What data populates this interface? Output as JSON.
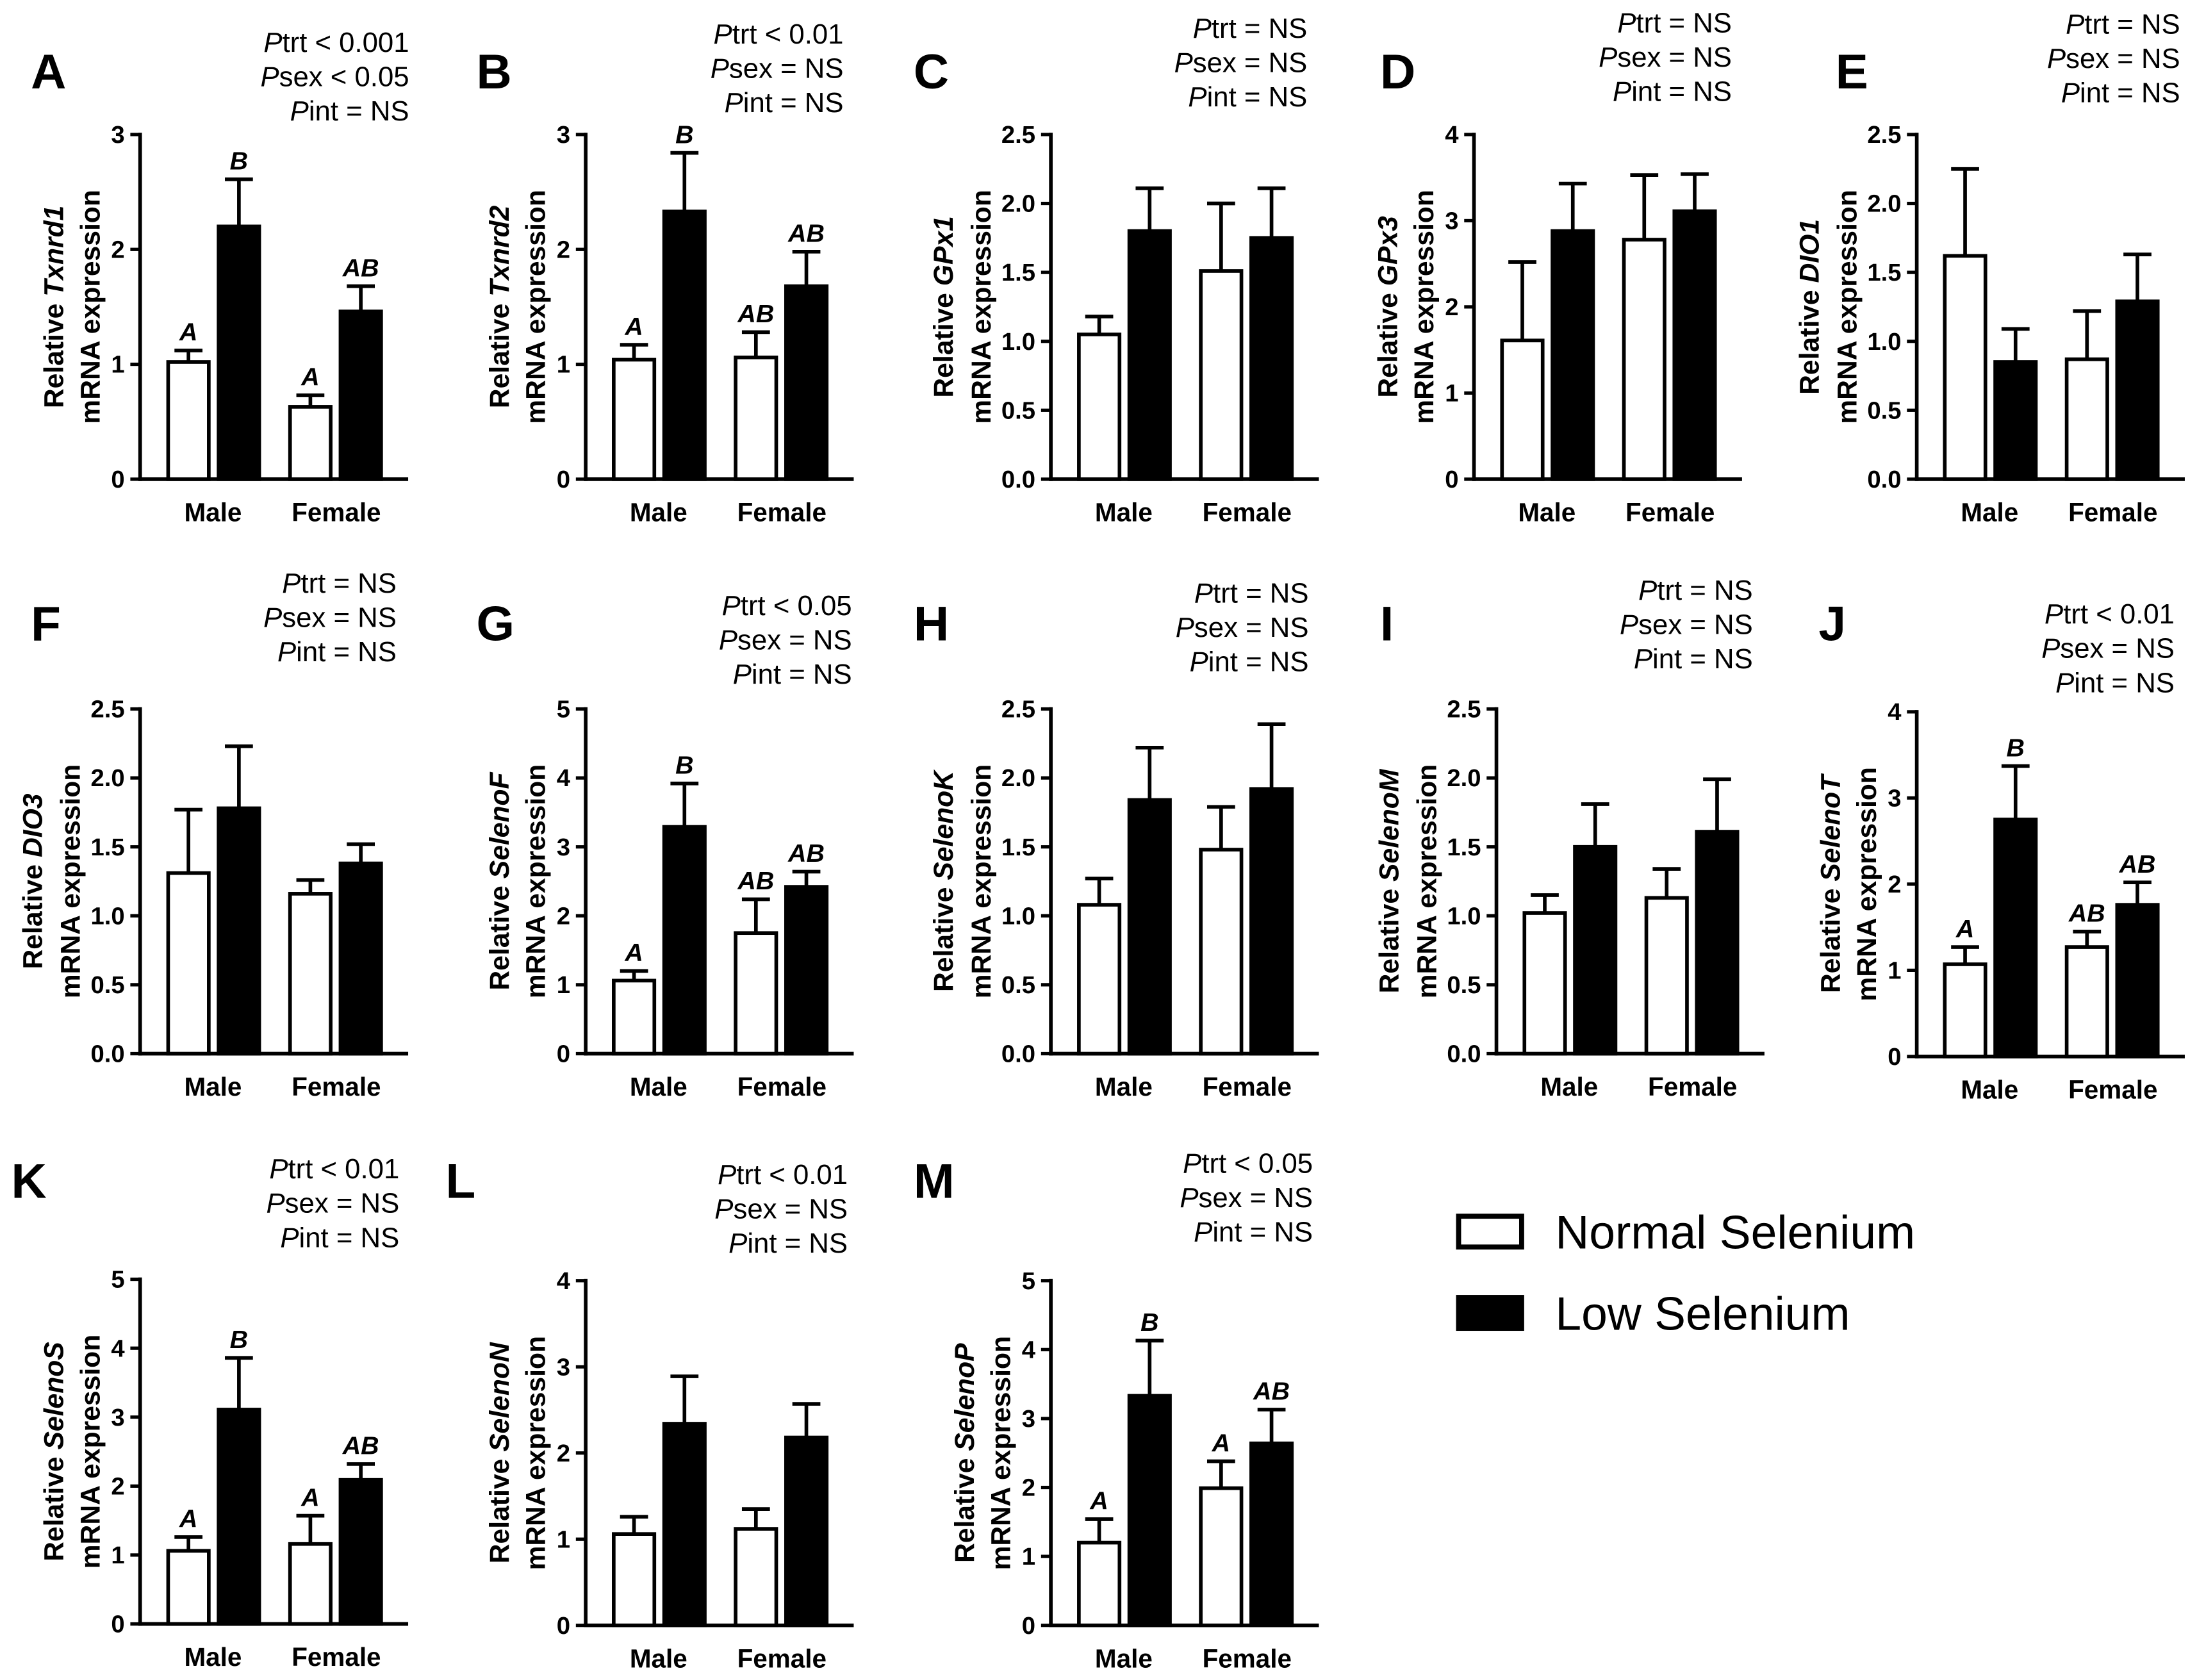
{
  "legend": {
    "items": [
      {
        "label": "Normal Selenium",
        "fill": "#ffffff"
      },
      {
        "label": "Low Selenium",
        "fill": "#000000"
      }
    ]
  },
  "chart_data": [
    {
      "type": "bar",
      "panel": "A",
      "ylabel": {
        "prefix": "Relative",
        "gene": "Txnrd1",
        "line2": "mRNA expression"
      },
      "ylim": [
        0,
        3
      ],
      "yticks": [
        "0",
        "1",
        "2",
        "3"
      ],
      "categories": [
        "Male",
        "Female"
      ],
      "series": [
        {
          "fill": "#ffffff",
          "values": [
            1.02,
            0.63
          ],
          "errors": [
            0.1,
            0.1
          ],
          "letters": [
            "A",
            "A"
          ]
        },
        {
          "fill": "#000000",
          "values": [
            2.2,
            1.46
          ],
          "errors": [
            0.41,
            0.22
          ],
          "letters": [
            "B",
            "AB"
          ]
        }
      ],
      "stats": [
        {
          "p": "P",
          "text": "trt < 0.001"
        },
        {
          "p": "P",
          "text": "sex < 0.05"
        },
        {
          "p": "P",
          "text": "int = NS"
        }
      ]
    },
    {
      "type": "bar",
      "panel": "B",
      "ylabel": {
        "prefix": "Relative",
        "gene": "Txnrd2",
        "line2": "mRNA expression"
      },
      "ylim": [
        0,
        3
      ],
      "yticks": [
        "0",
        "1",
        "2",
        "3"
      ],
      "categories": [
        "Male",
        "Female"
      ],
      "series": [
        {
          "fill": "#ffffff",
          "values": [
            1.04,
            1.06
          ],
          "errors": [
            0.13,
            0.22
          ],
          "letters": [
            "A",
            "AB"
          ]
        },
        {
          "fill": "#000000",
          "values": [
            2.33,
            1.68
          ],
          "errors": [
            0.51,
            0.3
          ],
          "letters": [
            "B",
            "AB"
          ]
        }
      ],
      "stats": [
        {
          "p": "P",
          "text": "trt < 0.01"
        },
        {
          "p": "P",
          "text": "sex = NS"
        },
        {
          "p": "P",
          "text": "int = NS"
        }
      ]
    },
    {
      "type": "bar",
      "panel": "C",
      "ylabel": {
        "prefix": "Relative",
        "gene": "GPx1",
        "line2": "mRNA expression"
      },
      "ylim": [
        0,
        2.5
      ],
      "yticks": [
        "0.0",
        "0.5",
        "1.0",
        "1.5",
        "2.0",
        "2.5"
      ],
      "categories": [
        "Male",
        "Female"
      ],
      "series": [
        {
          "fill": "#ffffff",
          "values": [
            1.05,
            1.51
          ],
          "errors": [
            0.13,
            0.49
          ]
        },
        {
          "fill": "#000000",
          "values": [
            1.8,
            1.75
          ],
          "errors": [
            0.31,
            0.36
          ]
        }
      ],
      "stats": [
        {
          "p": "P",
          "text": "trt = NS"
        },
        {
          "p": "P",
          "text": "sex = NS"
        },
        {
          "p": "P",
          "text": "int = NS"
        }
      ]
    },
    {
      "type": "bar",
      "panel": "D",
      "ylabel": {
        "prefix": "Relative",
        "gene": "GPx3",
        "line2": "mRNA expression"
      },
      "ylim": [
        0,
        4
      ],
      "yticks": [
        "0",
        "1",
        "2",
        "3",
        "4"
      ],
      "categories": [
        "Male",
        "Female"
      ],
      "series": [
        {
          "fill": "#ffffff",
          "values": [
            1.61,
            2.78
          ],
          "errors": [
            0.91,
            0.75
          ]
        },
        {
          "fill": "#000000",
          "values": [
            2.88,
            3.11
          ],
          "errors": [
            0.55,
            0.43
          ]
        }
      ],
      "stats": [
        {
          "p": "P",
          "text": "trt = NS"
        },
        {
          "p": "P",
          "text": "sex = NS"
        },
        {
          "p": "P",
          "text": "int = NS"
        }
      ]
    },
    {
      "type": "bar",
      "panel": "E",
      "ylabel": {
        "prefix": "Relative",
        "gene": "DIO1",
        "line2": "mRNA expression"
      },
      "ylim": [
        0,
        2.5
      ],
      "yticks": [
        "0.0",
        "0.5",
        "1.0",
        "1.5",
        "2.0",
        "2.5"
      ],
      "categories": [
        "Male",
        "Female"
      ],
      "series": [
        {
          "fill": "#ffffff",
          "values": [
            1.62,
            0.87
          ],
          "errors": [
            0.63,
            0.35
          ]
        },
        {
          "fill": "#000000",
          "values": [
            0.85,
            1.29
          ],
          "errors": [
            0.24,
            0.34
          ]
        }
      ],
      "stats": [
        {
          "p": "P",
          "text": "trt = NS"
        },
        {
          "p": "P",
          "text": "sex = NS"
        },
        {
          "p": "P",
          "text": "int = NS"
        }
      ]
    },
    {
      "type": "bar",
      "panel": "F",
      "ylabel": {
        "prefix": "Relative",
        "gene": "DIO3",
        "line2": "mRNA expression"
      },
      "ylim": [
        0,
        2.5
      ],
      "yticks": [
        "0.0",
        "0.5",
        "1.0",
        "1.5",
        "2.0",
        "2.5"
      ],
      "categories": [
        "Male",
        "Female"
      ],
      "series": [
        {
          "fill": "#ffffff",
          "values": [
            1.31,
            1.16
          ],
          "errors": [
            0.46,
            0.1
          ]
        },
        {
          "fill": "#000000",
          "values": [
            1.78,
            1.38
          ],
          "errors": [
            0.45,
            0.14
          ]
        }
      ],
      "stats": [
        {
          "p": "P",
          "text": "trt = NS"
        },
        {
          "p": "P",
          "text": "sex = NS"
        },
        {
          "p": "P",
          "text": "int = NS"
        }
      ]
    },
    {
      "type": "bar",
      "panel": "G",
      "ylabel": {
        "prefix": "Relative",
        "gene": "SelenoF",
        "line2": "mRNA expression"
      },
      "ylim": [
        0,
        5
      ],
      "yticks": [
        "0",
        "1",
        "2",
        "3",
        "4",
        "5"
      ],
      "categories": [
        "Male",
        "Female"
      ],
      "series": [
        {
          "fill": "#ffffff",
          "values": [
            1.06,
            1.75
          ],
          "errors": [
            0.14,
            0.49
          ],
          "letters": [
            "A",
            "AB"
          ]
        },
        {
          "fill": "#000000",
          "values": [
            3.29,
            2.42
          ],
          "errors": [
            0.63,
            0.22
          ],
          "letters": [
            "B",
            "AB"
          ]
        }
      ],
      "stats": [
        {
          "p": "P",
          "text": "trt < 0.05"
        },
        {
          "p": "P",
          "text": "sex = NS"
        },
        {
          "p": "P",
          "text": "int = NS"
        }
      ]
    },
    {
      "type": "bar",
      "panel": "H",
      "ylabel": {
        "prefix": "Relative",
        "gene": "SelenoK",
        "line2": "mRNA expression"
      },
      "ylim": [
        0,
        2.5
      ],
      "yticks": [
        "0.0",
        "0.5",
        "1.0",
        "1.5",
        "2.0",
        "2.5"
      ],
      "categories": [
        "Male",
        "Female"
      ],
      "series": [
        {
          "fill": "#ffffff",
          "values": [
            1.08,
            1.48
          ],
          "errors": [
            0.19,
            0.31
          ]
        },
        {
          "fill": "#000000",
          "values": [
            1.84,
            1.92
          ],
          "errors": [
            0.38,
            0.47
          ]
        }
      ],
      "stats": [
        {
          "p": "P",
          "text": "trt = NS"
        },
        {
          "p": "P",
          "text": "sex = NS"
        },
        {
          "p": "P",
          "text": "int = NS"
        }
      ]
    },
    {
      "type": "bar",
      "panel": "I",
      "ylabel": {
        "prefix": "Relative",
        "gene": "SelenoM",
        "line2": "mRNA expression"
      },
      "ylim": [
        0,
        2.5
      ],
      "yticks": [
        "0.0",
        "0.5",
        "1.0",
        "1.5",
        "2.0",
        "2.5"
      ],
      "categories": [
        "Male",
        "Female"
      ],
      "series": [
        {
          "fill": "#ffffff",
          "values": [
            1.02,
            1.13
          ],
          "errors": [
            0.13,
            0.21
          ]
        },
        {
          "fill": "#000000",
          "values": [
            1.5,
            1.61
          ],
          "errors": [
            0.31,
            0.38
          ]
        }
      ],
      "stats": [
        {
          "p": "P",
          "text": "trt = NS"
        },
        {
          "p": "P",
          "text": "sex = NS"
        },
        {
          "p": "P",
          "text": "int = NS"
        }
      ]
    },
    {
      "type": "bar",
      "panel": "J",
      "ylabel": {
        "prefix": "Relative",
        "gene": "SelenoT",
        "line2": "mRNA expression"
      },
      "ylim": [
        0,
        4
      ],
      "yticks": [
        "0",
        "1",
        "2",
        "3",
        "4"
      ],
      "categories": [
        "Male",
        "Female"
      ],
      "series": [
        {
          "fill": "#ffffff",
          "values": [
            1.07,
            1.27
          ],
          "errors": [
            0.2,
            0.18
          ],
          "letters": [
            "A",
            "AB"
          ]
        },
        {
          "fill": "#000000",
          "values": [
            2.75,
            1.76
          ],
          "errors": [
            0.62,
            0.26
          ],
          "letters": [
            "B",
            "AB"
          ]
        }
      ],
      "stats": [
        {
          "p": "P",
          "text": "trt < 0.01"
        },
        {
          "p": "P",
          "text": "sex = NS"
        },
        {
          "p": "P",
          "text": "int = NS"
        }
      ]
    },
    {
      "type": "bar",
      "panel": "K",
      "ylabel": {
        "prefix": "Relative",
        "gene": "SelenoS",
        "line2": "mRNA expression"
      },
      "ylim": [
        0,
        5
      ],
      "yticks": [
        "0",
        "1",
        "2",
        "3",
        "4",
        "5"
      ],
      "categories": [
        "Male",
        "Female"
      ],
      "series": [
        {
          "fill": "#ffffff",
          "values": [
            1.06,
            1.16
          ],
          "errors": [
            0.2,
            0.41
          ],
          "letters": [
            "A",
            "A"
          ]
        },
        {
          "fill": "#000000",
          "values": [
            3.11,
            2.09
          ],
          "errors": [
            0.75,
            0.23
          ],
          "letters": [
            "B",
            "AB"
          ]
        }
      ],
      "stats": [
        {
          "p": "P",
          "text": "trt < 0.01"
        },
        {
          "p": "P",
          "text": "sex = NS"
        },
        {
          "p": "P",
          "text": "int = NS"
        }
      ]
    },
    {
      "type": "bar",
      "panel": "L",
      "ylabel": {
        "prefix": "Relative",
        "gene": "SelenoN",
        "line2": "mRNA expression"
      },
      "ylim": [
        0,
        4
      ],
      "yticks": [
        "0",
        "1",
        "2",
        "3",
        "4"
      ],
      "categories": [
        "Male",
        "Female"
      ],
      "series": [
        {
          "fill": "#ffffff",
          "values": [
            1.06,
            1.12
          ],
          "errors": [
            0.2,
            0.23
          ]
        },
        {
          "fill": "#000000",
          "values": [
            2.34,
            2.18
          ],
          "errors": [
            0.55,
            0.39
          ]
        }
      ],
      "stats": [
        {
          "p": "P",
          "text": "trt < 0.01"
        },
        {
          "p": "P",
          "text": "sex = NS"
        },
        {
          "p": "P",
          "text": "int = NS"
        }
      ]
    },
    {
      "type": "bar",
      "panel": "M",
      "ylabel": {
        "prefix": "Relative",
        "gene": "SelenoP",
        "line2": "mRNA expression"
      },
      "ylim": [
        0,
        5
      ],
      "yticks": [
        "0",
        "1",
        "2",
        "3",
        "4",
        "5"
      ],
      "categories": [
        "Male",
        "Female"
      ],
      "series": [
        {
          "fill": "#ffffff",
          "values": [
            1.2,
            1.99
          ],
          "errors": [
            0.34,
            0.39
          ],
          "letters": [
            "A",
            "A"
          ]
        },
        {
          "fill": "#000000",
          "values": [
            3.33,
            2.64
          ],
          "errors": [
            0.8,
            0.49
          ],
          "letters": [
            "B",
            "AB"
          ]
        }
      ],
      "stats": [
        {
          "p": "P",
          "text": "trt < 0.05"
        },
        {
          "p": "P",
          "text": "sex = NS"
        },
        {
          "p": "P",
          "text": "int = NS"
        }
      ]
    }
  ]
}
